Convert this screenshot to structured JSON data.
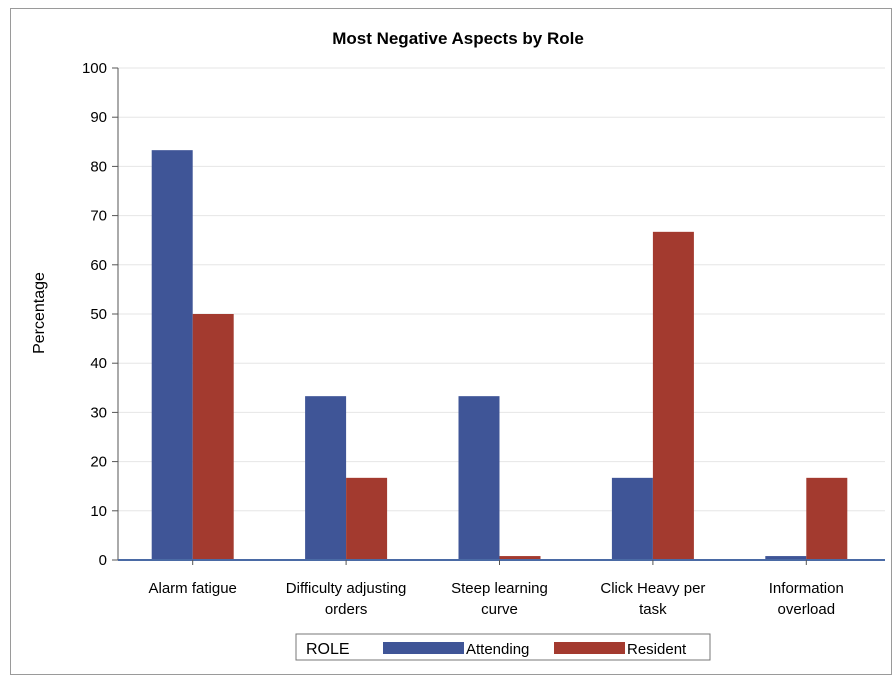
{
  "chart_data": {
    "type": "bar",
    "title": "Most Negative Aspects by Role",
    "xlabel": "",
    "ylabel": "Percentage",
    "ylim": [
      0,
      100
    ],
    "yticks": [
      0,
      10,
      20,
      30,
      40,
      50,
      60,
      70,
      80,
      90,
      100
    ],
    "grid": true,
    "categories": [
      [
        "Alarm fatigue"
      ],
      [
        "Difficulty adjusting",
        "orders"
      ],
      [
        "Steep learning",
        "curve"
      ],
      [
        "Click Heavy per",
        "task"
      ],
      [
        "Information",
        "overload"
      ]
    ],
    "legend": {
      "title": "ROLE",
      "placement": "bottom"
    },
    "series": [
      {
        "name": "Attending",
        "color": "#3f5597",
        "values": [
          83.3,
          33.3,
          33.3,
          16.7,
          0.8
        ]
      },
      {
        "name": "Resident",
        "color": "#a33a2f",
        "values": [
          50.0,
          16.7,
          0.8,
          66.7,
          16.7
        ]
      }
    ]
  }
}
